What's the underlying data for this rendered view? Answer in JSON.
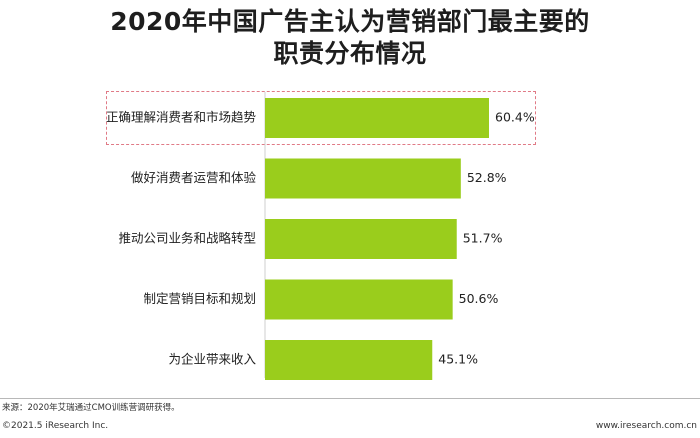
{
  "title": {
    "line1": "2020年中国广告主认为营销部门最主要的",
    "line2": "职责分布情况"
  },
  "chart_data": {
    "type": "bar",
    "orientation": "horizontal",
    "categories": [
      "正确理解消费者和市场趋势",
      "做好消费者运营和体验",
      "推动公司业务和战略转型",
      "制定营销目标和规划",
      "为企业带来收入"
    ],
    "values": [
      60.4,
      52.8,
      51.7,
      50.6,
      45.1
    ],
    "value_labels": [
      "60.4%",
      "52.8%",
      "51.7%",
      "50.6%",
      "45.1%"
    ],
    "unit": "%",
    "bar_color": "#9acd1c",
    "highlight_color": "#e07a86",
    "highlighted_category": "正确理解消费者和市场趋势",
    "xlim": [
      0,
      100
    ],
    "grid": false,
    "legend": "none"
  },
  "footer": {
    "source": "来源：2020年艾瑞通过CMO训练营调研获得。",
    "copyright": "©2021.5 iResearch Inc.",
    "website": "www.iresearch.com.cn"
  }
}
